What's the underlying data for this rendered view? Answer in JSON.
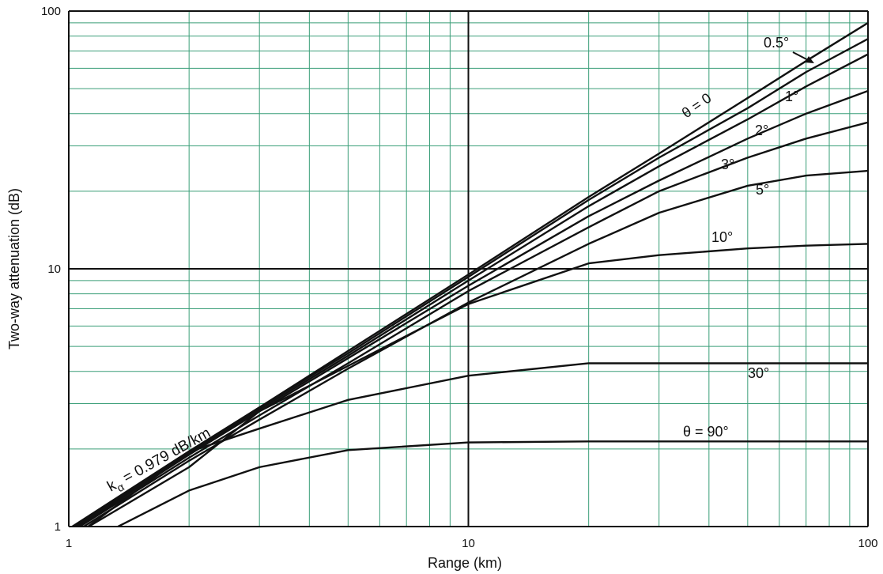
{
  "chart_data": {
    "type": "line",
    "xlabel": "Range (km)",
    "ylabel": "Two-way attenuation (dB)",
    "xscale": "log",
    "yscale": "log",
    "xlim": [
      1,
      100
    ],
    "ylim": [
      1,
      100
    ],
    "xticks": [
      1,
      10,
      100
    ],
    "yticks": [
      1,
      10,
      100
    ],
    "minor_xticks": [
      2,
      3,
      4,
      5,
      6,
      7,
      8,
      9,
      20,
      30,
      40,
      50,
      60,
      70,
      80,
      90
    ],
    "minor_yticks": [
      2,
      3,
      4,
      5,
      6,
      7,
      8,
      9,
      20,
      30,
      40,
      50,
      60,
      70,
      80,
      90
    ],
    "grid_color": "#3a9e78",
    "x": [
      1,
      2,
      3,
      5,
      10,
      20,
      30,
      50,
      70,
      100
    ],
    "series": [
      {
        "name": "θ = 0",
        "color": "#111111",
        "values": [
          0.98,
          1.96,
          2.9,
          4.8,
          9.5,
          19,
          28,
          46,
          64,
          90
        ]
      },
      {
        "name": "0.5°",
        "color": "#111111",
        "values": [
          0.97,
          1.95,
          2.9,
          4.7,
          9.3,
          18.5,
          27,
          42,
          58,
          78
        ]
      },
      {
        "name": "1°",
        "color": "#111111",
        "values": [
          0.96,
          1.93,
          2.85,
          4.6,
          9.0,
          17.5,
          25,
          38,
          51,
          68
        ]
      },
      {
        "name": "2°",
        "color": "#111111",
        "values": [
          0.95,
          1.9,
          2.8,
          4.5,
          8.6,
          16,
          22,
          32,
          40,
          49
        ]
      },
      {
        "name": "3°",
        "color": "#111111",
        "values": [
          0.94,
          1.85,
          2.7,
          4.3,
          8.2,
          14.5,
          20,
          27,
          32,
          37
        ]
      },
      {
        "name": "5°",
        "color": "#111111",
        "values": [
          0.92,
          1.8,
          2.6,
          4.1,
          7.4,
          12.5,
          16.5,
          21,
          23,
          24
        ]
      },
      {
        "name": "10°",
        "color": "#111111",
        "values": [
          0.9,
          1.7,
          2.8,
          4.2,
          7.3,
          10.5,
          11.3,
          12,
          12.3,
          12.5
        ]
      },
      {
        "name": "30°",
        "color": "#111111",
        "values": [
          0.88,
          1.95,
          2.4,
          3.1,
          3.85,
          4.3,
          4.3,
          4.3,
          4.3,
          4.3
        ]
      },
      {
        "name": "θ = 90°",
        "color": "#111111",
        "values": [
          0.8,
          1.38,
          1.7,
          1.98,
          2.12,
          2.14,
          2.14,
          2.14,
          2.14,
          2.14
        ]
      }
    ],
    "annotation": {
      "main": "k",
      "sub": "α",
      "rest": " = 0.979 dB/km"
    }
  }
}
